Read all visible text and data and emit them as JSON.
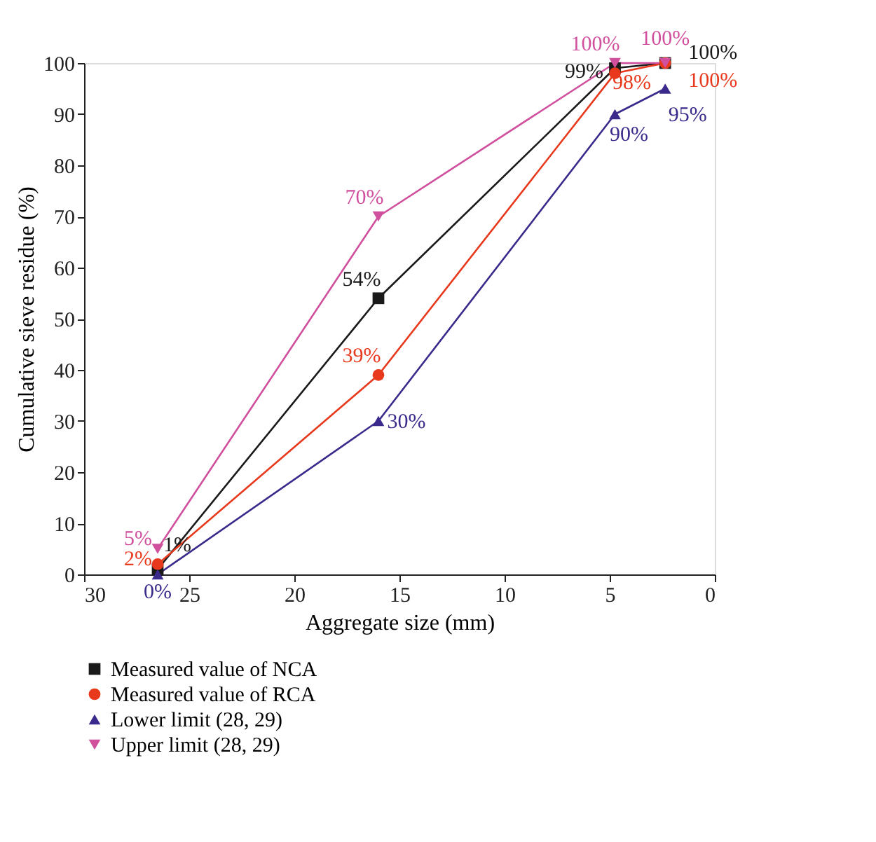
{
  "chart_data": {
    "type": "line",
    "xlabel": "Aggregate size (mm)",
    "ylabel": "Cumulative sieve residue (%)",
    "x": [
      26.5,
      16,
      4.75,
      2.36
    ],
    "xlim": [
      30,
      0
    ],
    "xticks": [
      30,
      25,
      20,
      15,
      10,
      5,
      0
    ],
    "ylim": [
      0,
      100
    ],
    "yticks": [
      0,
      10,
      20,
      30,
      40,
      50,
      60,
      70,
      80,
      90,
      100
    ],
    "grid": false,
    "legend": "bottom",
    "series": [
      {
        "name": "Measured value of NCA",
        "color": "#1a1a1a",
        "marker": "square",
        "values": [
          1,
          54,
          99,
          100
        ],
        "value_labels": [
          "1%",
          "54%",
          "99%",
          "100%"
        ]
      },
      {
        "name": "Measured value of RCA",
        "color": "#e8391d",
        "marker": "circle",
        "values": [
          2,
          39,
          98,
          100
        ],
        "value_labels": [
          "2%",
          "39%",
          "98%",
          "100%"
        ]
      },
      {
        "name": "Lower limit (28, 29)",
        "color": "#3b2a8c",
        "marker": "triangle",
        "values": [
          0,
          30,
          90,
          95
        ],
        "value_labels": [
          "0%",
          "30%",
          "90%",
          "95%"
        ]
      },
      {
        "name": "Upper limit (28, 29)",
        "color": "#d0509e",
        "marker": "triangle-down",
        "values": [
          5,
          70,
          100,
          100
        ],
        "value_labels": [
          "5%",
          "70%",
          "100%",
          "100%"
        ]
      }
    ]
  }
}
